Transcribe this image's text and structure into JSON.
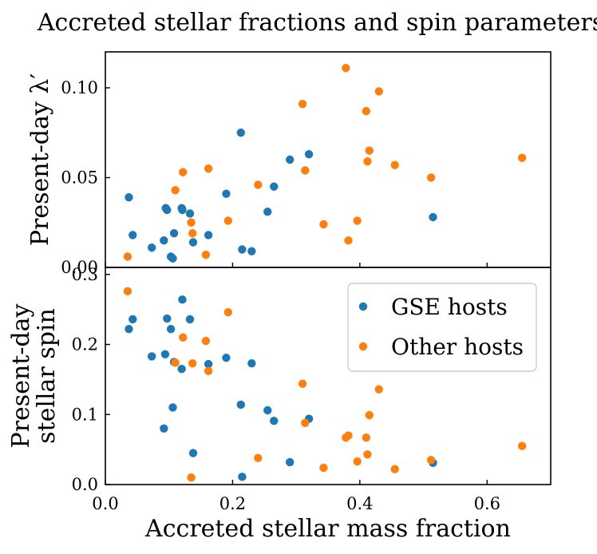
{
  "chart_data": {
    "type": "scatter",
    "title": "Accreted stellar fractions and spin parameters",
    "xlabel": "Accreted stellar mass fraction",
    "xlim": [
      0.0,
      0.7
    ],
    "xticks": [
      0.0,
      0.2,
      0.4,
      0.6
    ],
    "xtick_labels": [
      "0.0",
      "0.2",
      "0.4",
      "0.6"
    ],
    "colors": {
      "GSE hosts": "#1f77b4",
      "Other hosts": "#ff7f0e"
    },
    "panels": [
      {
        "name": "top",
        "ylabel": "Present-day λ′",
        "ylabel_lines": [
          "Present-day λ′"
        ],
        "ylim": [
          0.0,
          0.12
        ],
        "yticks": [
          0.0,
          0.05,
          0.1
        ],
        "ytick_labels": [
          "0.00",
          "0.05",
          "0.10"
        ],
        "series": [
          {
            "name": "GSE hosts",
            "x": [
              0.037,
              0.043,
              0.073,
              0.092,
              0.095,
              0.097,
              0.103,
              0.106,
              0.108,
              0.12,
              0.121,
              0.133,
              0.138,
              0.162,
              0.19,
              0.213,
              0.215,
              0.23,
              0.255,
              0.265,
              0.29,
              0.32,
              0.515
            ],
            "y": [
              0.039,
              0.018,
              0.011,
              0.015,
              0.033,
              0.032,
              0.006,
              0.005,
              0.019,
              0.033,
              0.032,
              0.03,
              0.014,
              0.018,
              0.041,
              0.075,
              0.01,
              0.009,
              0.031,
              0.045,
              0.06,
              0.063,
              0.028
            ]
          },
          {
            "name": "Other hosts",
            "x": [
              0.035,
              0.11,
              0.122,
              0.135,
              0.137,
              0.158,
              0.162,
              0.193,
              0.24,
              0.31,
              0.314,
              0.343,
              0.378,
              0.382,
              0.396,
              0.41,
              0.412,
              0.415,
              0.43,
              0.455,
              0.512,
              0.655
            ],
            "y": [
              0.006,
              0.043,
              0.053,
              0.025,
              0.019,
              0.007,
              0.055,
              0.026,
              0.046,
              0.091,
              0.054,
              0.024,
              0.111,
              0.015,
              0.026,
              0.087,
              0.059,
              0.065,
              0.098,
              0.057,
              0.05,
              0.061
            ]
          }
        ]
      },
      {
        "name": "bottom",
        "ylabel": "Present-day stellar spin",
        "ylabel_lines": [
          "Present-day",
          "stellar spin"
        ],
        "ylim": [
          0.0,
          0.31
        ],
        "yticks": [
          0.0,
          0.1,
          0.2,
          0.3
        ],
        "ytick_labels": [
          "0.0",
          "0.1",
          "0.2",
          "0.3"
        ],
        "legend": {
          "location": "top-right",
          "entries": [
            "GSE hosts",
            "Other hosts"
          ]
        },
        "series": [
          {
            "name": "GSE hosts",
            "x": [
              0.037,
              0.043,
              0.073,
              0.092,
              0.094,
              0.097,
              0.103,
              0.106,
              0.108,
              0.12,
              0.121,
              0.133,
              0.138,
              0.162,
              0.19,
              0.213,
              0.215,
              0.23,
              0.255,
              0.265,
              0.29,
              0.32,
              0.515
            ],
            "y": [
              0.222,
              0.236,
              0.183,
              0.08,
              0.186,
              0.237,
              0.222,
              0.11,
              0.175,
              0.165,
              0.264,
              0.236,
              0.045,
              0.172,
              0.181,
              0.114,
              0.011,
              0.173,
              0.106,
              0.091,
              0.032,
              0.094,
              0.031
            ]
          },
          {
            "name": "Other hosts",
            "x": [
              0.035,
              0.11,
              0.122,
              0.135,
              0.137,
              0.158,
              0.162,
              0.193,
              0.24,
              0.31,
              0.314,
              0.343,
              0.378,
              0.382,
              0.396,
              0.41,
              0.412,
              0.415,
              0.43,
              0.455,
              0.512,
              0.655
            ],
            "y": [
              0.276,
              0.174,
              0.21,
              0.01,
              0.173,
              0.205,
              0.162,
              0.246,
              0.038,
              0.144,
              0.088,
              0.024,
              0.067,
              0.07,
              0.033,
              0.067,
              0.043,
              0.099,
              0.136,
              0.022,
              0.035,
              0.055
            ]
          }
        ]
      }
    ]
  }
}
